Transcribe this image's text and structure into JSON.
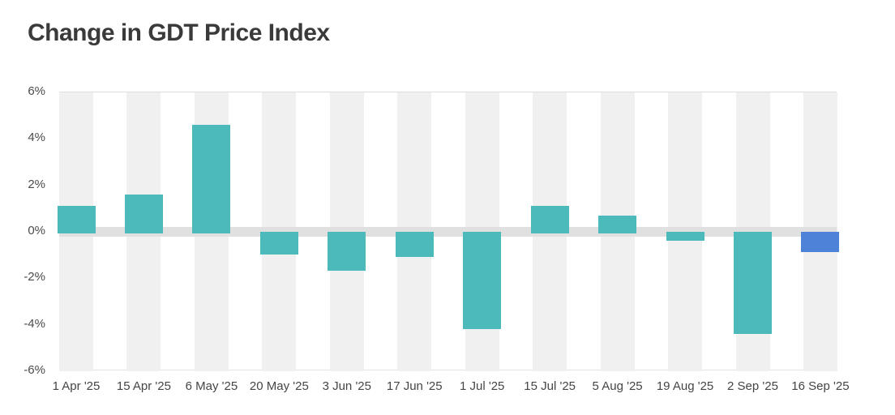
{
  "page": {
    "title": "Change in GDT Price Index"
  },
  "colors": {
    "bar_teal": "#4cb9bb",
    "bar_blue": "#4d82d8",
    "stripe_gray": "#f0f0f0",
    "zero_band_gray": "#e0e0e0",
    "border_gray": "#dedede",
    "title_text": "#3a3a3a",
    "axis_text": "#4b4b4b",
    "background": "#ffffff"
  },
  "chart_data": {
    "type": "bar",
    "title": "Change in GDT Price Index",
    "xlabel": "",
    "ylabel": "",
    "categories": [
      "1 Apr '25",
      "15 Apr '25",
      "6 May '25",
      "20 May '25",
      "3 Jun '25",
      "17 Jun '25",
      "1 Jul '25",
      "15 Jul '25",
      "5 Aug '25",
      "19 Aug '25",
      "2 Sep '25",
      "16 Sep '25"
    ],
    "values": [
      1.1,
      1.6,
      4.6,
      -0.9,
      -1.6,
      -1.0,
      -4.1,
      1.1,
      0.7,
      -0.3,
      -4.3,
      -0.8
    ],
    "bar_colors": [
      "#4cb9bb",
      "#4cb9bb",
      "#4cb9bb",
      "#4cb9bb",
      "#4cb9bb",
      "#4cb9bb",
      "#4cb9bb",
      "#4cb9bb",
      "#4cb9bb",
      "#4cb9bb",
      "#4cb9bb",
      "#4d82d8"
    ],
    "y_tick_labels": [
      "6%",
      "4%",
      "2%",
      "0%",
      "-2%",
      "-4%",
      "-6%"
    ],
    "y_tick_values": [
      6,
      4,
      2,
      0,
      -2,
      -4,
      -6
    ],
    "ylim": [
      -6,
      6
    ],
    "grid": "off",
    "legend": "none",
    "background_column_stripes": true
  }
}
